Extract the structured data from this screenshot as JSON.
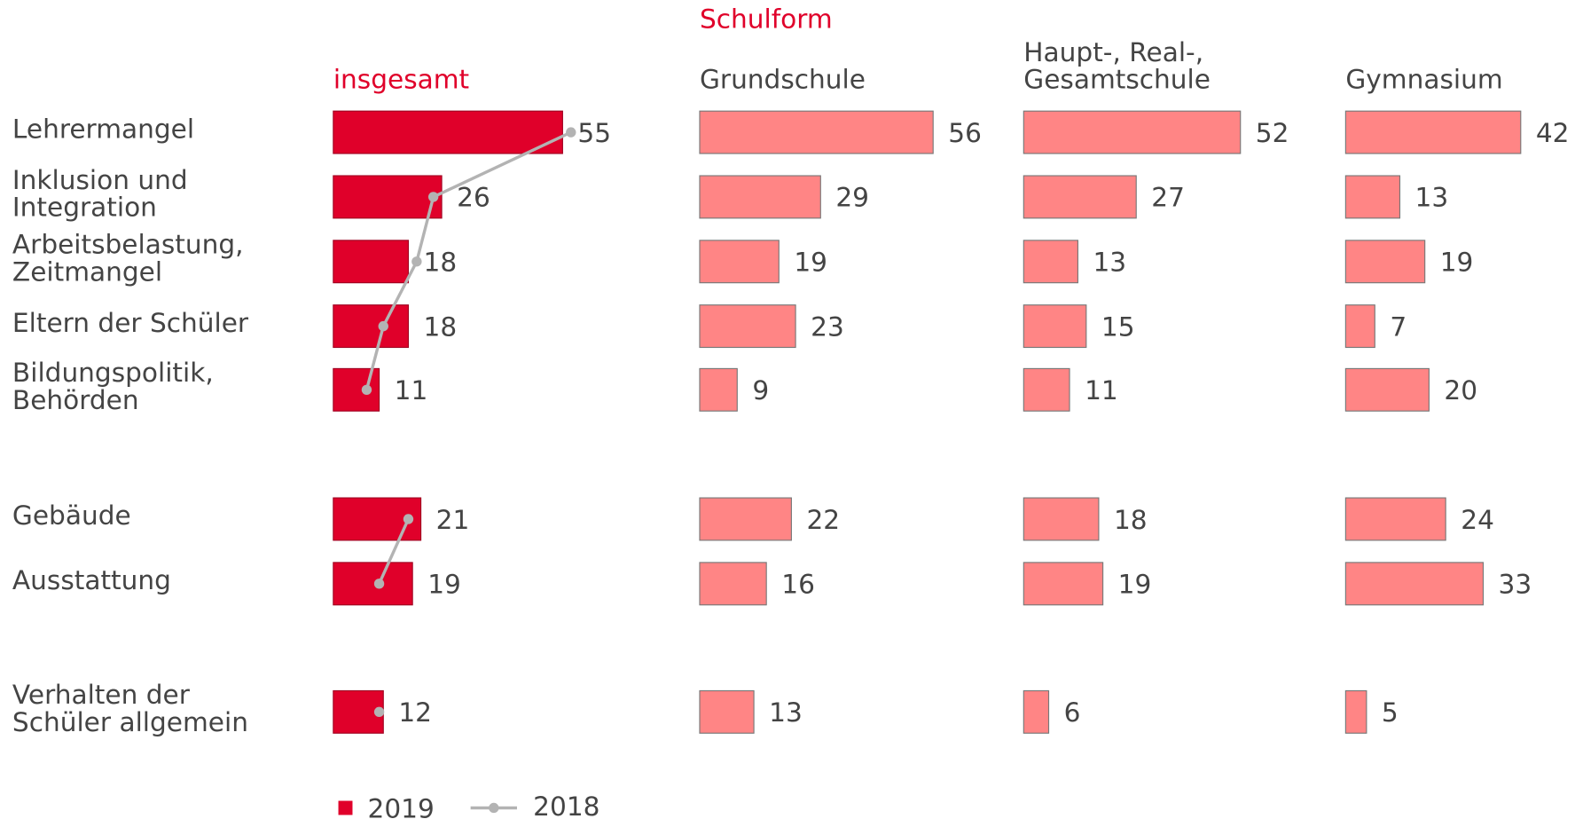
{
  "chart_data": {
    "type": "bar",
    "subtitle": "Schulform",
    "categories": [
      [
        "Lehrermangel"
      ],
      [
        "Inklusion und",
        "Integration"
      ],
      [
        "Arbeitsbelastung,",
        "Zeitmangel"
      ],
      [
        "Eltern der Schüler"
      ],
      [
        "Bildungspolitik,",
        "Behörden"
      ],
      [
        "Gebäude"
      ],
      [
        "Ausstattung"
      ],
      [
        "Verhalten der",
        "Schüler allgemein"
      ]
    ],
    "panel_title": "insgesamt",
    "series": [
      {
        "name": "2019",
        "color": "#e0002a",
        "values": [
          55,
          26,
          18,
          18,
          11,
          21,
          19,
          12
        ]
      },
      {
        "name": "2018",
        "type": "line",
        "color": "#b3b3b3",
        "values": [
          57,
          24,
          20,
          12,
          8,
          18,
          11,
          11
        ]
      }
    ],
    "panels": [
      {
        "title": [
          "Grundschule"
        ],
        "color": "#ff8585",
        "values": [
          56,
          29,
          19,
          23,
          9,
          22,
          16,
          13
        ]
      },
      {
        "title": [
          "Haupt-, Real-,",
          "Gesamtschule"
        ],
        "color": "#ff8585",
        "values": [
          52,
          27,
          13,
          15,
          11,
          18,
          19,
          6
        ]
      },
      {
        "title": [
          "Gymnasium"
        ],
        "color": "#ff8585",
        "values": [
          42,
          13,
          19,
          7,
          20,
          24,
          33,
          5
        ]
      }
    ]
  }
}
